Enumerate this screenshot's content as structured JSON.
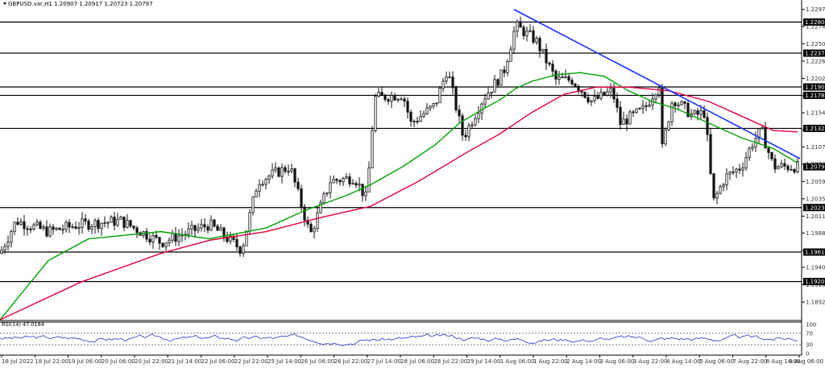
{
  "header": {
    "symbol_line": "GBPUSD.var,H1  1.20907 1.20917 1.20723 1.20797"
  },
  "rsi": {
    "label": "RSI(14) 47.0184",
    "ticks": [
      "100",
      "70",
      "30",
      "0"
    ]
  },
  "colors": {
    "candles": "#111111",
    "green_ma": "#00a000",
    "red_ma": "#e0003c",
    "trendline": "#1a33ff",
    "rsi_line": "#2233cc",
    "level_label_bg": "#000000",
    "price_label_bg": "#000000"
  },
  "chart_data": {
    "type": "candlestick",
    "title": "GBPUSD.var,H1",
    "price_ticks": [
      "1.22975",
      "1.22740",
      "1.22500",
      "1.22260",
      "1.22020",
      "1.21780",
      "1.21545",
      "1.21310",
      "1.21070",
      "1.20835",
      "1.20595",
      "1.20355",
      "1.20115",
      "1.19880",
      "1.19640",
      "1.19405",
      "1.19165",
      "1.18925"
    ],
    "y_range": [
      1.1867,
      1.2305
    ],
    "horizontal_levels": [
      1.22801,
      1.2237,
      1.21902,
      1.21786,
      1.21329,
      1.20233,
      1.19617,
      1.19209
    ],
    "current_price": "1.20797",
    "time_labels": [
      "18 Jul 2022",
      "18 Jul 22:00",
      "19 Jul 06:00",
      "20 Jul 06:00",
      "20 Jul 22:00",
      "21 Jul 14:00",
      "22 Jul 06:00",
      "22 Jul 22:00",
      "25 Jul 14:00",
      "26 Jul 06:00",
      "26 Jul 22:00",
      "27 Jul 14:00",
      "28 Jul 06:00",
      "28 Jul 22:00",
      "29 Jul 14:00",
      "1 Aug 06:00",
      "1 Aug 22:00",
      "2 Aug 14:00",
      "3 Aug 06:00",
      "3 Aug 22:00",
      "4 Aug 14:00",
      "5 Aug 06:00",
      "7 Aug 22:00",
      "8 Aug 14:00",
      "9 Aug 06:00"
    ],
    "key_points": [
      {
        "t": 0,
        "price": 1.196
      },
      {
        "t": 20,
        "price": 1.2005
      },
      {
        "t": 60,
        "price": 1.199
      },
      {
        "t": 100,
        "price": 1.2
      },
      {
        "t": 150,
        "price": 1.2005
      },
      {
        "t": 200,
        "price": 1.1975
      },
      {
        "t": 260,
        "price": 1.2
      },
      {
        "t": 300,
        "price": 1.1965
      },
      {
        "t": 320,
        "price": 1.206
      },
      {
        "t": 360,
        "price": 1.208
      },
      {
        "t": 385,
        "price": 1.1985
      },
      {
        "t": 410,
        "price": 1.206
      },
      {
        "t": 440,
        "price": 1.2065
      },
      {
        "t": 455,
        "price": 1.2035
      },
      {
        "t": 465,
        "price": 1.2175
      },
      {
        "t": 500,
        "price": 1.218
      },
      {
        "t": 510,
        "price": 1.214
      },
      {
        "t": 540,
        "price": 1.2165
      },
      {
        "t": 555,
        "price": 1.2215
      },
      {
        "t": 575,
        "price": 1.212
      },
      {
        "t": 600,
        "price": 1.2175
      },
      {
        "t": 625,
        "price": 1.221
      },
      {
        "t": 640,
        "price": 1.2275
      },
      {
        "t": 665,
        "price": 1.2255
      },
      {
        "t": 690,
        "price": 1.22
      },
      {
        "t": 710,
        "price": 1.22
      },
      {
        "t": 735,
        "price": 1.217
      },
      {
        "t": 760,
        "price": 1.2185
      },
      {
        "t": 770,
        "price": 1.214
      },
      {
        "t": 800,
        "price": 1.216
      },
      {
        "t": 818,
        "price": 1.2195
      },
      {
        "t": 822,
        "price": 1.2105
      },
      {
        "t": 835,
        "price": 1.2175
      },
      {
        "t": 860,
        "price": 1.215
      },
      {
        "t": 875,
        "price": 1.2155
      },
      {
        "t": 885,
        "price": 1.203
      },
      {
        "t": 900,
        "price": 1.2065
      },
      {
        "t": 920,
        "price": 1.208
      },
      {
        "t": 935,
        "price": 1.2115
      },
      {
        "t": 945,
        "price": 1.213
      },
      {
        "t": 960,
        "price": 1.208
      },
      {
        "t": 990,
        "price": 1.208
      }
    ],
    "series": [
      {
        "name": "green_ma",
        "values": [
          [
            0,
            1.1868
          ],
          [
            60,
            1.195
          ],
          [
            110,
            1.198
          ],
          [
            200,
            1.199
          ],
          [
            260,
            1.198
          ],
          [
            330,
            1.1995
          ],
          [
            380,
            1.202
          ],
          [
            430,
            1.204
          ],
          [
            460,
            1.2055
          ],
          [
            500,
            1.208
          ],
          [
            540,
            1.211
          ],
          [
            570,
            1.214
          ],
          [
            600,
            1.216
          ],
          [
            620,
            1.2172
          ],
          [
            640,
            1.2188
          ],
          [
            660,
            1.2198
          ],
          [
            690,
            1.2207
          ],
          [
            720,
            1.221
          ],
          [
            750,
            1.2205
          ],
          [
            780,
            1.2185
          ],
          [
            810,
            1.217
          ],
          [
            840,
            1.216
          ],
          [
            880,
            1.214
          ],
          [
            920,
            1.212
          ],
          [
            960,
            1.2105
          ],
          [
            990,
            1.2085
          ]
        ]
      },
      {
        "name": "red_ma",
        "values": [
          [
            0,
            1.1868
          ],
          [
            100,
            1.192
          ],
          [
            200,
            1.196
          ],
          [
            260,
            1.1978
          ],
          [
            330,
            1.199
          ],
          [
            400,
            1.201
          ],
          [
            460,
            1.2025
          ],
          [
            520,
            1.206
          ],
          [
            580,
            1.21
          ],
          [
            620,
            1.2125
          ],
          [
            660,
            1.2155
          ],
          [
            700,
            1.218
          ],
          [
            740,
            1.219
          ],
          [
            780,
            1.219
          ],
          [
            830,
            1.2185
          ],
          [
            880,
            1.217
          ],
          [
            920,
            1.215
          ],
          [
            960,
            1.213
          ],
          [
            990,
            1.2128
          ]
        ]
      }
    ],
    "trendline": [
      [
        638,
        1.22975
      ],
      [
        993,
        1.2091
      ]
    ]
  }
}
